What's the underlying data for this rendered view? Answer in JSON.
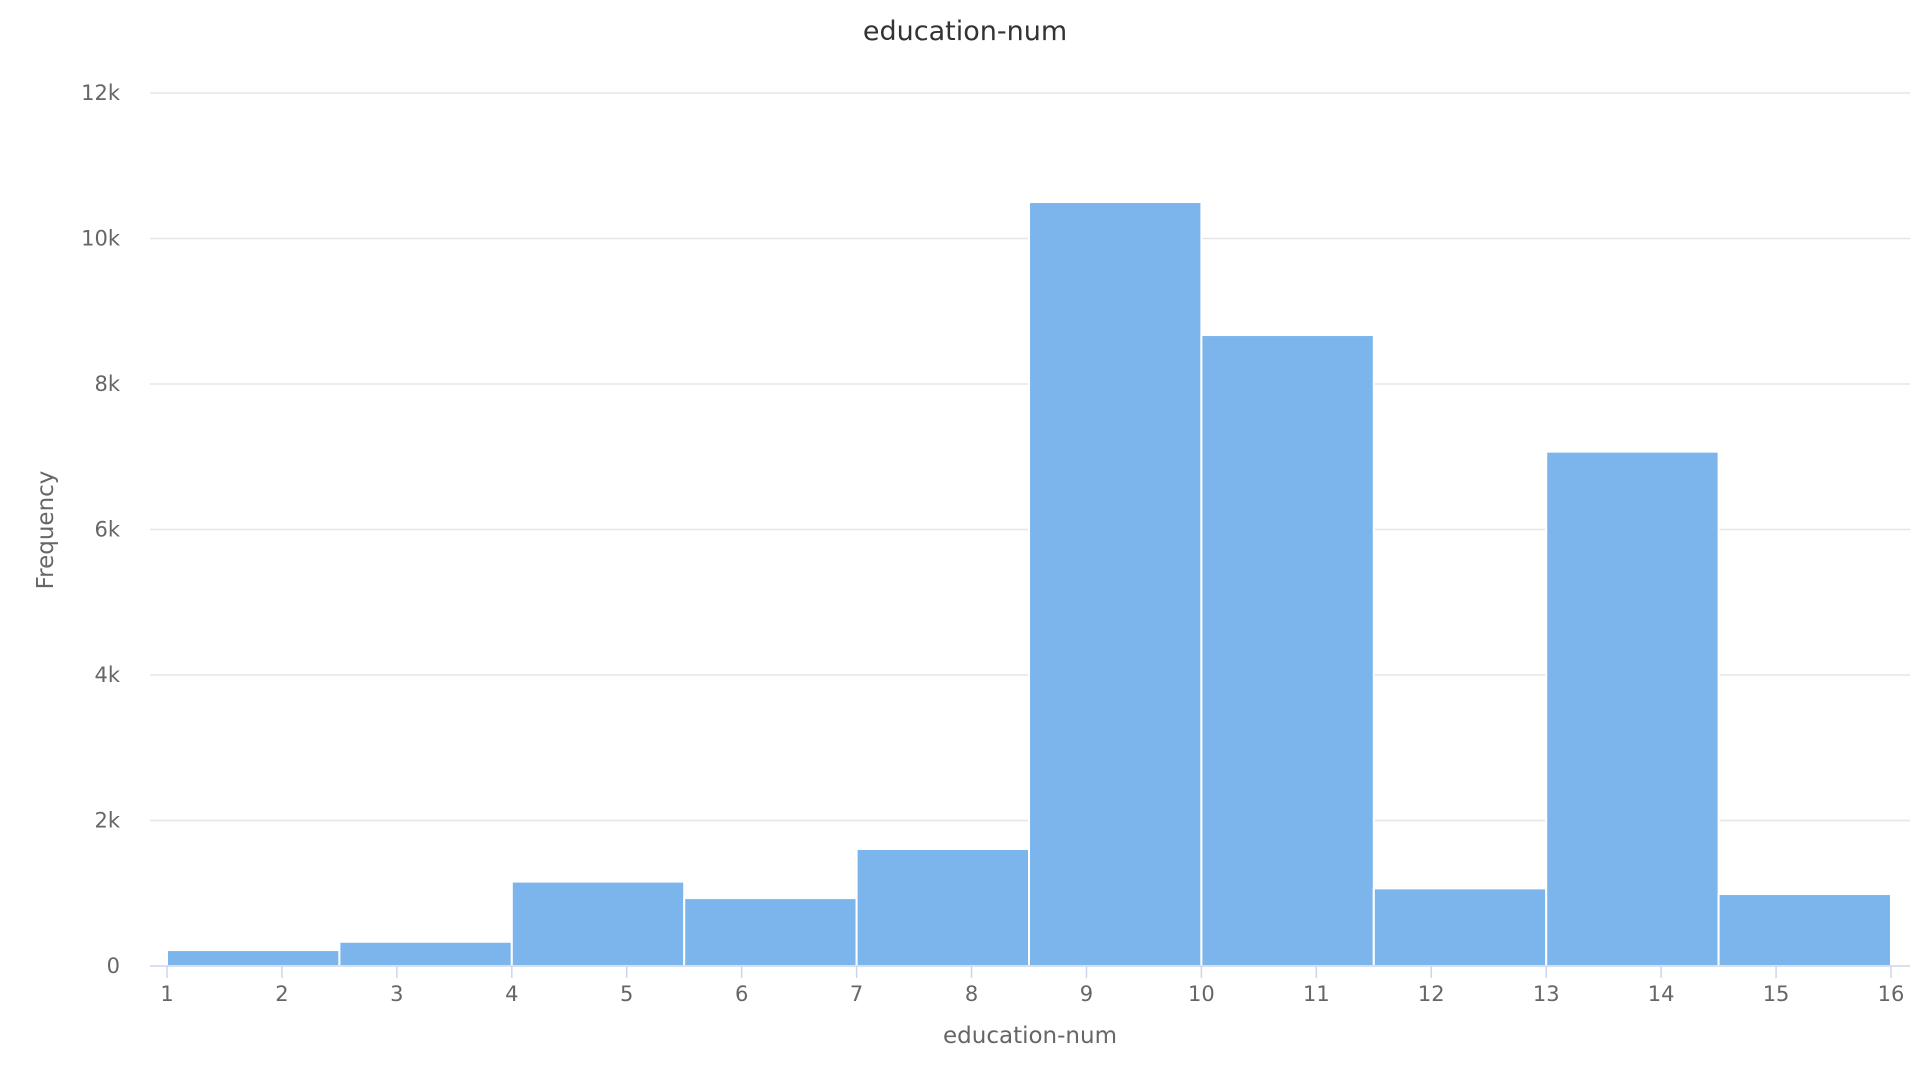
{
  "chart_data": {
    "type": "bar",
    "title": "education-num",
    "xlabel": "education-num",
    "ylabel": "Frequency",
    "xlim": [
      1,
      16
    ],
    "ylim": [
      0,
      12000
    ],
    "x_ticks": [
      1,
      2,
      3,
      4,
      5,
      6,
      7,
      8,
      9,
      10,
      11,
      12,
      13,
      14,
      15,
      16
    ],
    "y_ticks": [
      0,
      2000,
      4000,
      6000,
      8000,
      10000,
      12000
    ],
    "y_tick_labels": [
      "0",
      "2k",
      "4k",
      "6k",
      "8k",
      "10k",
      "12k"
    ],
    "grid": true,
    "bar_color": "#7cb5ec",
    "bins": [
      {
        "x0": 1.0,
        "x1": 2.5,
        "value": 219
      },
      {
        "x0": 2.5,
        "x1": 4.0,
        "value": 333
      },
      {
        "x0": 4.0,
        "x1": 5.5,
        "value": 1160
      },
      {
        "x0": 5.5,
        "x1": 7.0,
        "value": 933
      },
      {
        "x0": 7.0,
        "x1": 8.5,
        "value": 1608
      },
      {
        "x0": 8.5,
        "x1": 10.0,
        "value": 10501
      },
      {
        "x0": 10.0,
        "x1": 11.5,
        "value": 8673
      },
      {
        "x0": 11.5,
        "x1": 13.0,
        "value": 1067
      },
      {
        "x0": 13.0,
        "x1": 14.5,
        "value": 7070
      },
      {
        "x0": 14.5,
        "x1": 16.0,
        "value": 989
      }
    ]
  }
}
